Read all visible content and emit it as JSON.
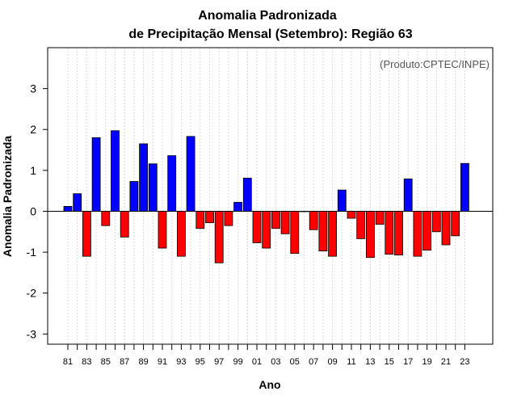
{
  "chart_data": {
    "type": "bar",
    "title": "Anomalia Padronizada",
    "subtitle": "de Precipitação Mensal (Setembro): Região 63",
    "xlabel": "Ano",
    "ylabel": "Anomalia Padronizada",
    "credit": "(Produto:CPTEC/INPE)",
    "ylim": [
      -3.25,
      4.0
    ],
    "yticks": [
      -3,
      -2,
      -1,
      0,
      1,
      2,
      3
    ],
    "grid": "vertical dotted",
    "positive_color": "#0000ff",
    "negative_color": "#ff0000",
    "categories": [
      "81",
      "82",
      "83",
      "84",
      "85",
      "86",
      "87",
      "88",
      "89",
      "90",
      "91",
      "92",
      "93",
      "94",
      "95",
      "96",
      "97",
      "98",
      "99",
      "00",
      "01",
      "02",
      "03",
      "04",
      "05",
      "06",
      "07",
      "08",
      "09",
      "10",
      "11",
      "12",
      "13",
      "14",
      "15",
      "16",
      "17",
      "18",
      "19",
      "20",
      "21",
      "22",
      "23"
    ],
    "xtick_labels": [
      "81",
      "83",
      "85",
      "87",
      "89",
      "91",
      "93",
      "95",
      "97",
      "99",
      "01",
      "03",
      "05",
      "07",
      "09",
      "11",
      "13",
      "15",
      "17",
      "19",
      "21",
      "23"
    ],
    "values": [
      0.12,
      0.43,
      -1.1,
      1.8,
      -0.35,
      1.97,
      -0.63,
      0.73,
      1.65,
      1.16,
      -0.9,
      1.36,
      -1.1,
      1.83,
      -0.42,
      -0.28,
      -1.26,
      -0.35,
      0.22,
      0.81,
      -0.77,
      -0.9,
      -0.42,
      -0.55,
      -1.03,
      -0.01,
      -0.45,
      -0.97,
      -1.1,
      0.52,
      -0.17,
      -0.67,
      -1.13,
      -0.32,
      -1.05,
      -1.07,
      0.79,
      -1.1,
      -0.95,
      -0.5,
      -0.82,
      -0.6,
      1.17
    ]
  }
}
